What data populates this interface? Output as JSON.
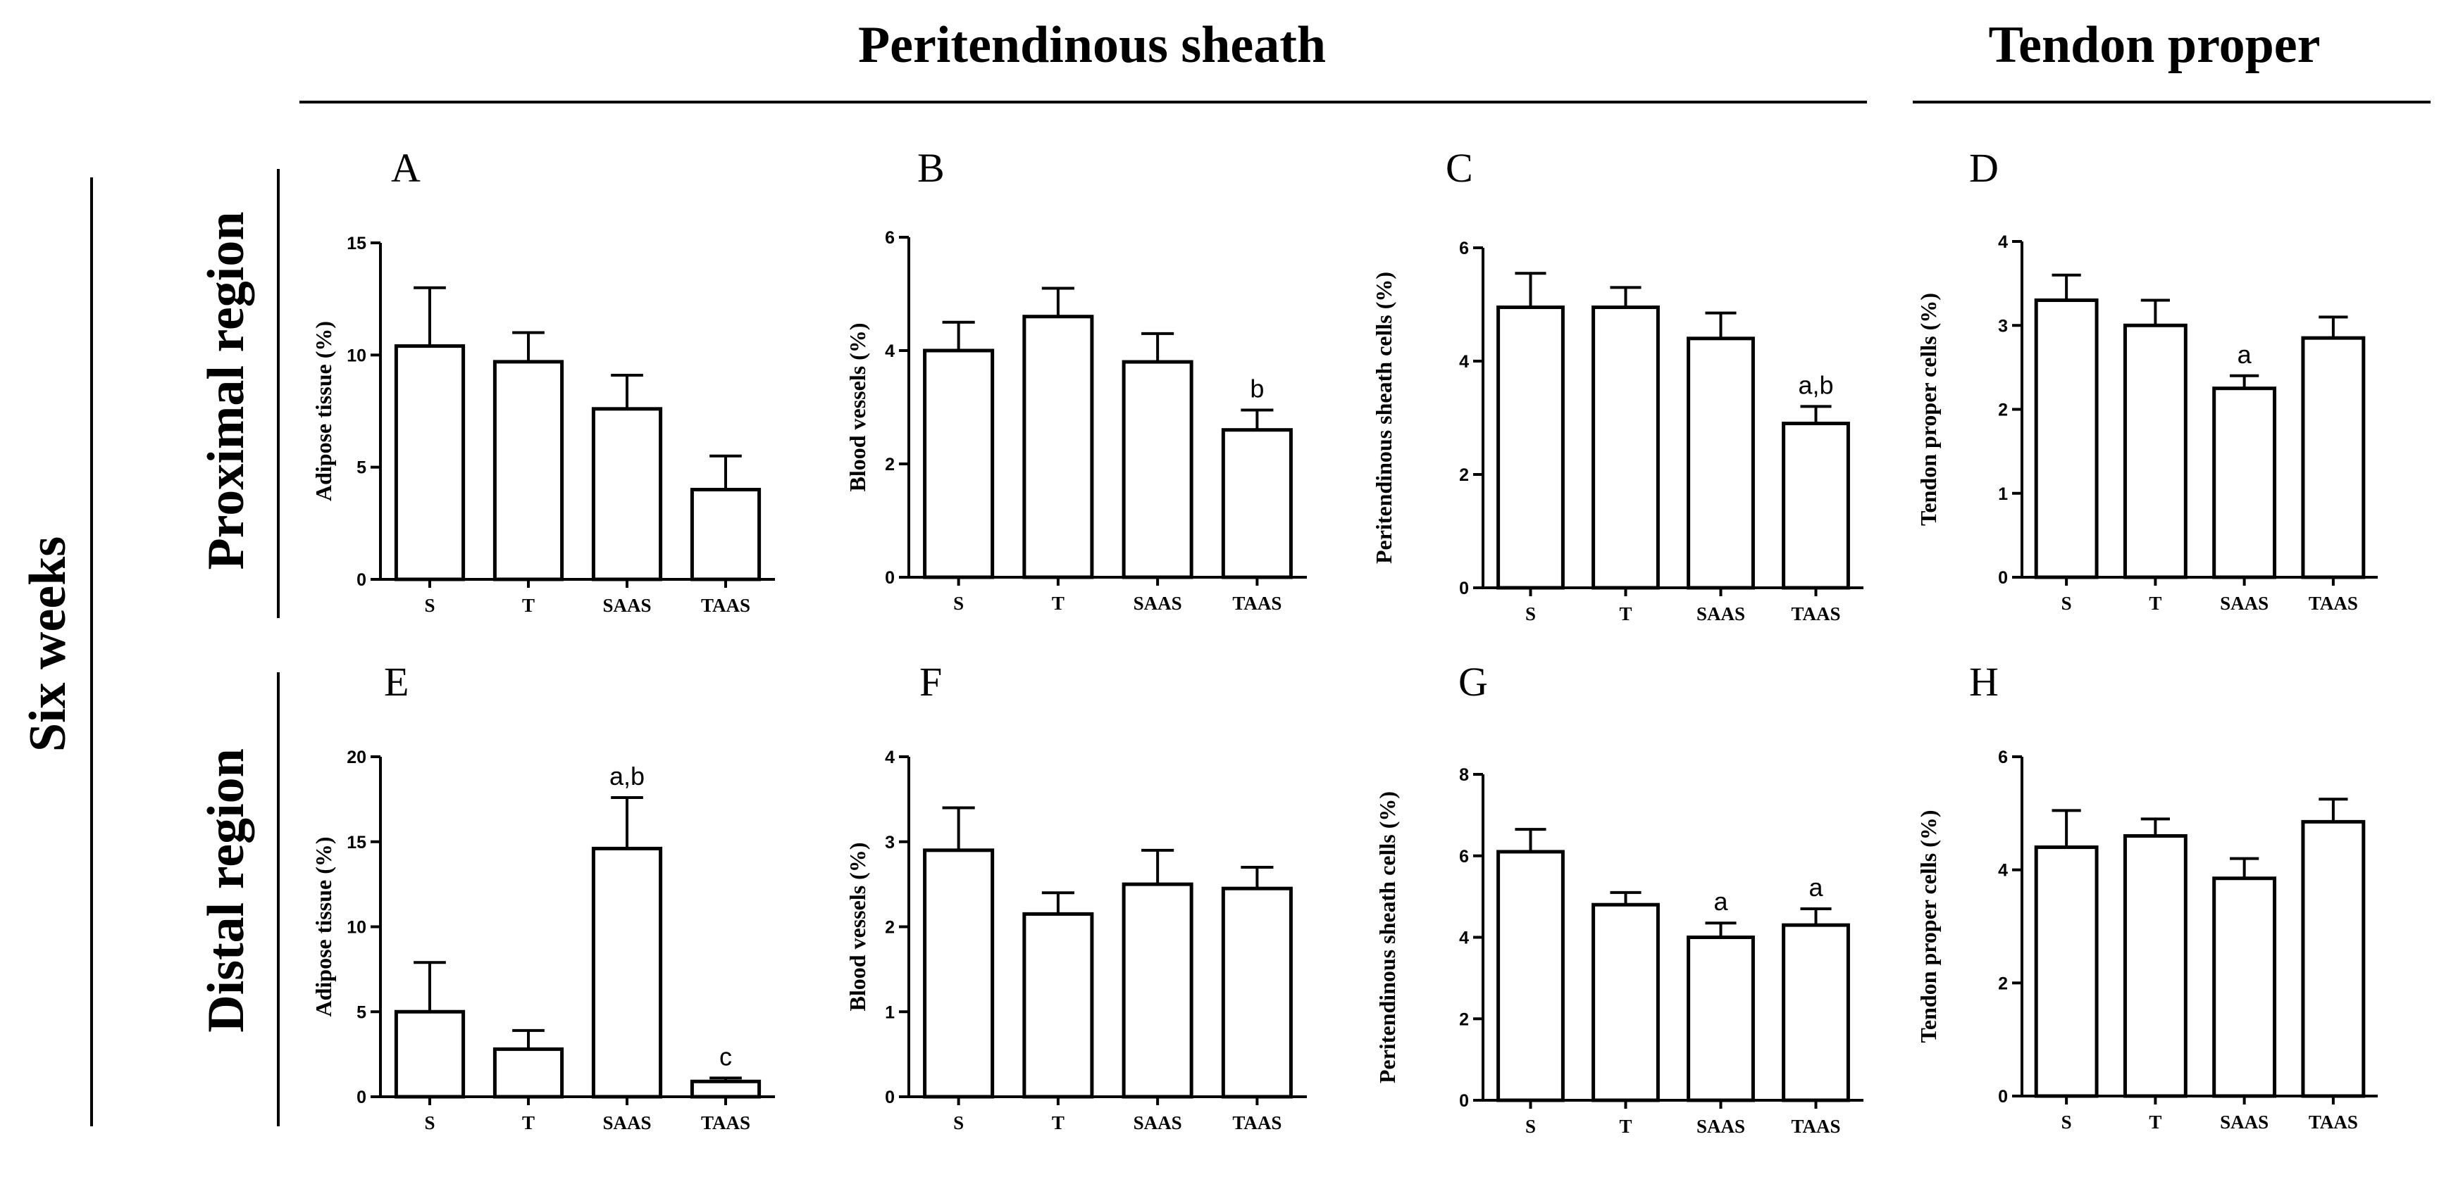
{
  "headers": {
    "peritendinous": "Peritendinous sheath",
    "tendon": "Tendon proper",
    "six_weeks": "Six weeks",
    "proximal": "Proximal region",
    "distal": "Distal region"
  },
  "chart_data": [
    {
      "panel": "A",
      "type": "bar",
      "ylabel": "Adipose tissue (%)",
      "categories": [
        "S",
        "T",
        "SAAS",
        "TAAS"
      ],
      "values": [
        10.4,
        9.7,
        7.6,
        4.0
      ],
      "errors": [
        2.6,
        1.3,
        1.5,
        1.5
      ],
      "annotations": [
        "",
        "",
        "",
        ""
      ],
      "ylim": [
        0,
        15
      ],
      "yticks": [
        0,
        5,
        10,
        15
      ]
    },
    {
      "panel": "B",
      "type": "bar",
      "ylabel": "Blood vessels (%)",
      "categories": [
        "S",
        "T",
        "SAAS",
        "TAAS"
      ],
      "values": [
        4.0,
        4.6,
        3.8,
        2.6
      ],
      "errors": [
        0.5,
        0.5,
        0.5,
        0.35
      ],
      "annotations": [
        "",
        "",
        "",
        "b"
      ],
      "ylim": [
        0,
        6
      ],
      "yticks": [
        0,
        2,
        4,
        6
      ]
    },
    {
      "panel": "C",
      "type": "bar",
      "ylabel": "Peritendinous sheath cells (%)",
      "categories": [
        "S",
        "T",
        "SAAS",
        "TAAS"
      ],
      "values": [
        4.95,
        4.95,
        4.4,
        2.9
      ],
      "errors": [
        0.6,
        0.35,
        0.45,
        0.3
      ],
      "annotations": [
        "",
        "",
        "",
        "a,b"
      ],
      "ylim": [
        0,
        6
      ],
      "yticks": [
        0,
        2,
        4,
        6
      ]
    },
    {
      "panel": "D",
      "type": "bar",
      "ylabel": "Tendon  proper cells (%)",
      "categories": [
        "S",
        "T",
        "SAAS",
        "TAAS"
      ],
      "values": [
        3.3,
        3.0,
        2.25,
        2.85
      ],
      "errors": [
        0.3,
        0.3,
        0.15,
        0.25
      ],
      "annotations": [
        "",
        "",
        "a",
        ""
      ],
      "ylim": [
        0,
        4
      ],
      "yticks": [
        0,
        1,
        2,
        3,
        4
      ]
    },
    {
      "panel": "E",
      "type": "bar",
      "ylabel": "Adipose tissue (%)",
      "categories": [
        "S",
        "T",
        "SAAS",
        "TAAS"
      ],
      "values": [
        5.0,
        2.8,
        14.6,
        0.9
      ],
      "errors": [
        2.9,
        1.1,
        3.0,
        0.2
      ],
      "annotations": [
        "",
        "",
        "a,b",
        "c"
      ],
      "ylim": [
        0,
        20
      ],
      "yticks": [
        0,
        5,
        10,
        15,
        20
      ]
    },
    {
      "panel": "F",
      "type": "bar",
      "ylabel": "Blood vessels (%)",
      "categories": [
        "S",
        "T",
        "SAAS",
        "TAAS"
      ],
      "values": [
        2.9,
        2.15,
        2.5,
        2.45
      ],
      "errors": [
        0.5,
        0.25,
        0.4,
        0.25
      ],
      "annotations": [
        "",
        "",
        "",
        ""
      ],
      "ylim": [
        0,
        4
      ],
      "yticks": [
        0,
        1,
        2,
        3,
        4
      ]
    },
    {
      "panel": "G",
      "type": "bar",
      "ylabel": "Peritendinous sheath cells (%)",
      "categories": [
        "S",
        "T",
        "SAAS",
        "TAAS"
      ],
      "values": [
        6.1,
        4.8,
        4.0,
        4.3
      ],
      "errors": [
        0.55,
        0.3,
        0.35,
        0.4
      ],
      "annotations": [
        "",
        "",
        "a",
        "a"
      ],
      "ylim": [
        0,
        8
      ],
      "yticks": [
        0,
        2,
        4,
        6,
        8
      ]
    },
    {
      "panel": "H",
      "type": "bar",
      "ylabel": "Tendon proper cells (%)",
      "categories": [
        "S",
        "T",
        "SAAS",
        "TAAS"
      ],
      "values": [
        4.4,
        4.6,
        3.85,
        4.85
      ],
      "errors": [
        0.65,
        0.3,
        0.35,
        0.4
      ],
      "annotations": [
        "",
        "",
        "",
        ""
      ],
      "ylim": [
        0,
        6
      ],
      "yticks": [
        0,
        2,
        4,
        6
      ]
    }
  ]
}
